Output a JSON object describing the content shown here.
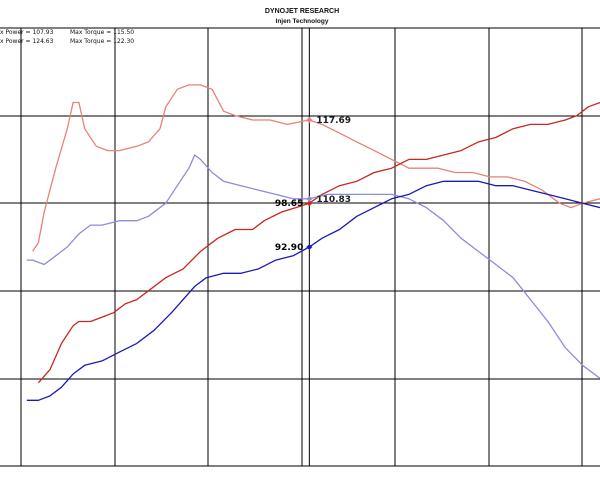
{
  "header": {
    "title": "DYNOJET RESEARCH",
    "subtitle": "Injen Technology"
  },
  "legend": [
    {
      "power_label": "x Power = 107.93",
      "torque_label": "Max Torque = 115.50"
    },
    {
      "power_label": "x Power = 124.63",
      "torque_label": "Max Torque = 122.30"
    }
  ],
  "colors": {
    "power_run1": "#1a1ab4",
    "power_run2": "#c8281e",
    "torque_run1": "#8c8cdc",
    "torque_run2": "#e68278",
    "grid": "#000000",
    "background": "#ffffff"
  },
  "chart_data": {
    "type": "line",
    "title": "DYNOJET RESEARCH",
    "subtitle": "Injen Technology",
    "xlabel": "",
    "ylabel": "",
    "xlim": [
      0,
      100
    ],
    "ylim": [
      0,
      100
    ],
    "grid": true,
    "legend_position": "top-left",
    "cursor_x": 49.8,
    "series": [
      {
        "key": "torque_run2",
        "points": [
          [
            2,
            49
          ],
          [
            3,
            51
          ],
          [
            4,
            58
          ],
          [
            6,
            68
          ],
          [
            8,
            77
          ],
          [
            9,
            83
          ],
          [
            10,
            83
          ],
          [
            11,
            77
          ],
          [
            13,
            73
          ],
          [
            15,
            72
          ],
          [
            17,
            72
          ],
          [
            20,
            73
          ],
          [
            22,
            74
          ],
          [
            24,
            77
          ],
          [
            25,
            82
          ],
          [
            27,
            86
          ],
          [
            29,
            87
          ],
          [
            31,
            87
          ],
          [
            33,
            86
          ],
          [
            35,
            81
          ],
          [
            37,
            80
          ],
          [
            40,
            79
          ],
          [
            43,
            79
          ],
          [
            46,
            78
          ],
          [
            49.8,
            79
          ],
          [
            52,
            78
          ],
          [
            55,
            76
          ],
          [
            58,
            74
          ],
          [
            61,
            72
          ],
          [
            64,
            70
          ],
          [
            67,
            68
          ],
          [
            69,
            68
          ],
          [
            72,
            68
          ],
          [
            75,
            67
          ],
          [
            78,
            67
          ],
          [
            81,
            66
          ],
          [
            84,
            66
          ],
          [
            87,
            65
          ],
          [
            90,
            63
          ],
          [
            93,
            60
          ],
          [
            95,
            59
          ],
          [
            97,
            60
          ],
          [
            100,
            61
          ]
        ]
      },
      {
        "key": "power_run2",
        "points": [
          [
            3,
            19
          ],
          [
            5,
            22
          ],
          [
            7,
            28
          ],
          [
            9,
            32
          ],
          [
            10,
            33
          ],
          [
            12,
            33
          ],
          [
            14,
            34
          ],
          [
            16,
            35
          ],
          [
            18,
            37
          ],
          [
            20,
            38
          ],
          [
            22,
            40
          ],
          [
            25,
            43
          ],
          [
            28,
            45
          ],
          [
            31,
            49
          ],
          [
            34,
            52
          ],
          [
            37,
            54
          ],
          [
            40,
            54
          ],
          [
            42,
            56
          ],
          [
            45,
            58
          ],
          [
            47.5,
            59
          ],
          [
            49.8,
            60
          ],
          [
            52,
            62
          ],
          [
            55,
            64
          ],
          [
            58,
            65
          ],
          [
            61,
            67
          ],
          [
            64,
            68
          ],
          [
            67,
            70
          ],
          [
            70,
            70
          ],
          [
            73,
            71
          ],
          [
            76,
            72
          ],
          [
            79,
            74
          ],
          [
            82,
            75
          ],
          [
            85,
            77
          ],
          [
            88,
            78
          ],
          [
            91,
            78
          ],
          [
            94,
            79
          ],
          [
            96,
            80
          ],
          [
            98,
            82
          ],
          [
            100,
            83
          ]
        ]
      },
      {
        "key": "torque_run1",
        "points": [
          [
            1,
            47
          ],
          [
            2,
            47
          ],
          [
            4,
            46
          ],
          [
            6,
            48
          ],
          [
            8,
            50
          ],
          [
            10,
            53
          ],
          [
            12,
            55
          ],
          [
            14,
            55
          ],
          [
            17,
            56
          ],
          [
            20,
            56
          ],
          [
            22,
            57
          ],
          [
            25,
            60
          ],
          [
            27,
            64
          ],
          [
            29,
            68
          ],
          [
            30,
            71
          ],
          [
            31,
            70
          ],
          [
            33,
            67
          ],
          [
            35,
            65
          ],
          [
            38,
            64
          ],
          [
            41,
            63
          ],
          [
            44,
            62
          ],
          [
            47,
            61
          ],
          [
            49.8,
            61
          ],
          [
            53,
            62
          ],
          [
            57,
            62
          ],
          [
            61,
            62
          ],
          [
            64,
            62
          ],
          [
            67,
            61
          ],
          [
            70,
            59
          ],
          [
            73,
            56
          ],
          [
            76,
            52
          ],
          [
            79,
            49
          ],
          [
            82,
            46
          ],
          [
            85,
            43
          ],
          [
            88,
            38
          ],
          [
            91,
            33
          ],
          [
            94,
            27
          ],
          [
            97,
            23
          ],
          [
            100,
            20
          ]
        ]
      },
      {
        "key": "power_run1",
        "points": [
          [
            1,
            15
          ],
          [
            3,
            15
          ],
          [
            5,
            16
          ],
          [
            7,
            18
          ],
          [
            9,
            21
          ],
          [
            11,
            23
          ],
          [
            14,
            24
          ],
          [
            17,
            26
          ],
          [
            20,
            28
          ],
          [
            23,
            31
          ],
          [
            26,
            35
          ],
          [
            28,
            38
          ],
          [
            30,
            41
          ],
          [
            32,
            43
          ],
          [
            35,
            44
          ],
          [
            38,
            44
          ],
          [
            41,
            45
          ],
          [
            44,
            47
          ],
          [
            47,
            48
          ],
          [
            49.8,
            50
          ],
          [
            52,
            52
          ],
          [
            55,
            54
          ],
          [
            58,
            57
          ],
          [
            61,
            59
          ],
          [
            64,
            61
          ],
          [
            67,
            62
          ],
          [
            70,
            64
          ],
          [
            73,
            65
          ],
          [
            76,
            65
          ],
          [
            79,
            65
          ],
          [
            82,
            64
          ],
          [
            85,
            64
          ],
          [
            88,
            63
          ],
          [
            91,
            62
          ],
          [
            94,
            61
          ],
          [
            97,
            60
          ],
          [
            100,
            59
          ]
        ]
      }
    ],
    "annotations": [
      {
        "key": "power_run2",
        "value": "98.65",
        "x": 49.8,
        "y": 60,
        "side": "left"
      },
      {
        "key": "power_run1",
        "value": "92.90",
        "x": 49.8,
        "y": 50,
        "side": "left"
      },
      {
        "key": "torque_run2",
        "value": "117.69",
        "x": 49.8,
        "y": 79,
        "side": "right"
      },
      {
        "key": "torque_run1",
        "value": "110.83",
        "x": 49.8,
        "y": 61,
        "side": "right"
      }
    ]
  }
}
